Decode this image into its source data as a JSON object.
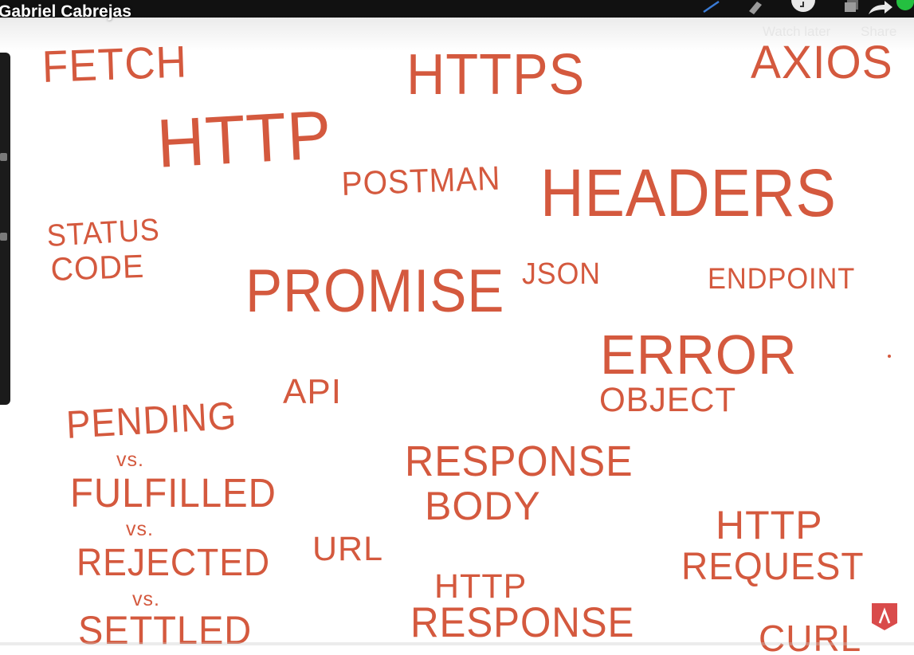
{
  "header": {
    "channel_name": "Gabriel Cabrejas",
    "watch_later_label": "Watch later",
    "share_label": "Share"
  },
  "whiteboard": {
    "words": {
      "fetch": "FETCH",
      "https": "HTTPS",
      "axios": "AXIOS",
      "http": "HTTP",
      "postman": "POSTMAN",
      "headers": "HEADERS",
      "status_code_line1": "STATUS",
      "status_code_line2": "CODE",
      "promise": "PROMISE",
      "json": "JSON",
      "endpoint": "ENDPOINT",
      "error_line1": "ERROR",
      "error_line2": "OBJECT",
      "api": "API",
      "pending": "PENDING",
      "vs1": "vs.",
      "fulfilled": "FULFILLED",
      "vs2": "vs.",
      "rejected": "REJECTED",
      "vs3": "vs.",
      "settled": "SETTLED",
      "response_body_line1": "RESPONSE",
      "response_body_line2": "BODY",
      "url": "URL",
      "http_response_line1": "HTTP",
      "http_response_line2": "RESPONSE",
      "http_request_line1": "HTTP",
      "http_request_line2": "REQUEST",
      "curl": "CURL"
    },
    "ink_color": "#d4593e"
  },
  "icons": {
    "pen": "pen-icon",
    "highlighter": "highlighter-icon",
    "watch_later": "clock-icon",
    "share": "share-arrow-icon",
    "logo": "channel-logo-icon"
  }
}
